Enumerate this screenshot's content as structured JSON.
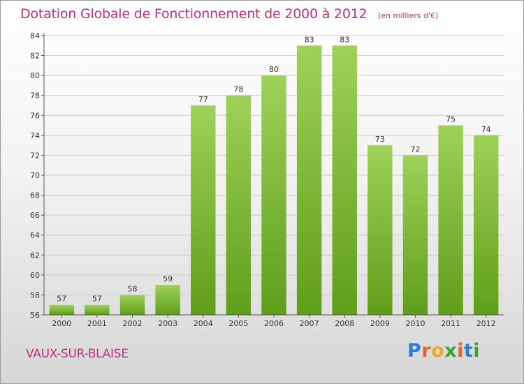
{
  "header": {
    "title": "Dotation Globale de Fonctionnement de 2000 à 2012",
    "subtitle": "(en milliers d'€)"
  },
  "footer": {
    "commune": "VAUX-SUR-BLAISE",
    "brand_letters": [
      "P",
      "r",
      "o",
      "x",
      "i",
      "t",
      "i"
    ],
    "brand_colors": [
      "#2a7fd4",
      "#e8632a",
      "#f2a81d",
      "#3aa23a",
      "#e8632a",
      "#2a7fd4",
      "#3aa23a"
    ]
  },
  "colors": {
    "bar_light": "#9ed158",
    "bar_dark": "#5f9e1a",
    "grid": "#cccccc",
    "axis": "#555555",
    "accent": "#c0307a"
  },
  "chart_data": {
    "type": "bar",
    "categories": [
      "2000",
      "2001",
      "2002",
      "2003",
      "2004",
      "2005",
      "2006",
      "2007",
      "2008",
      "2009",
      "2010",
      "2011",
      "2012"
    ],
    "values": [
      57,
      57,
      58,
      59,
      77,
      78,
      80,
      83,
      83,
      73,
      72,
      75,
      74
    ],
    "title": "Dotation Globale de Fonctionnement de 2000 à 2012",
    "subtitle": "(en milliers d'€)",
    "xlabel": "",
    "ylabel": "",
    "ylim": [
      56,
      84
    ],
    "ytick_step": 2,
    "grid": true,
    "legend": "none"
  }
}
